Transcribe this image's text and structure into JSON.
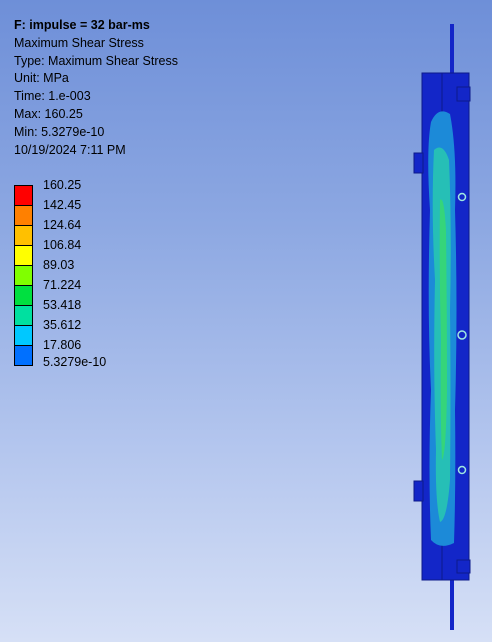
{
  "result_info": {
    "title": "F: impulse = 32 bar-ms",
    "result_name": "Maximum Shear Stress",
    "type_line": "Type: Maximum Shear Stress",
    "unit_line": "Unit: MPa",
    "time_line": "Time: 1.e-003",
    "max_line": "Max: 160.25",
    "min_line": "Min: 5.3279e-10",
    "date_line": "10/19/2024 7:11 PM"
  },
  "legend": {
    "labels": [
      "160.25",
      "142.45",
      "124.64",
      "106.84",
      "89.03",
      "71.224",
      "53.418",
      "35.612",
      "17.806",
      "5.3279e-10"
    ],
    "colors": [
      "#ff0000",
      "#ff8000",
      "#ffc000",
      "#ffff00",
      "#80ff00",
      "#00e040",
      "#00e0a0",
      "#00c8ff",
      "#0070ff",
      "#0000ff"
    ]
  },
  "model_colors": {
    "low": "#1326c8",
    "low_mid": "#1c8ad8",
    "mid": "#28c8b0",
    "mid_high": "#38d870"
  }
}
